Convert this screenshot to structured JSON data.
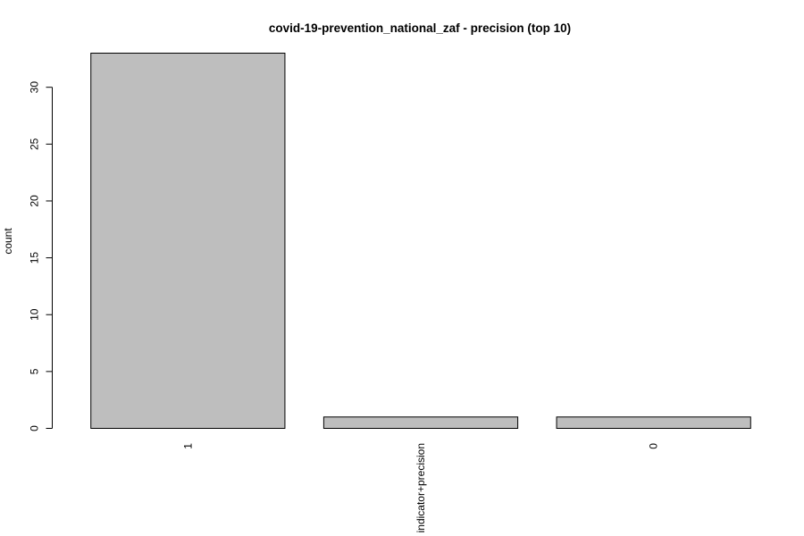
{
  "chart_data": {
    "type": "bar",
    "title": "covid-19-prevention_national_zaf - precision (top 10)",
    "xlabel": "",
    "ylabel": "count",
    "categories": [
      "1",
      "indicator+precision",
      "0"
    ],
    "values": [
      33,
      1,
      1
    ],
    "ylim": [
      0,
      33
    ],
    "yticks": [
      0,
      5,
      10,
      15,
      20,
      25,
      30
    ],
    "grid": false,
    "legend": "none",
    "bar_color": "#bebebe",
    "bar_stroke": "#000000"
  }
}
